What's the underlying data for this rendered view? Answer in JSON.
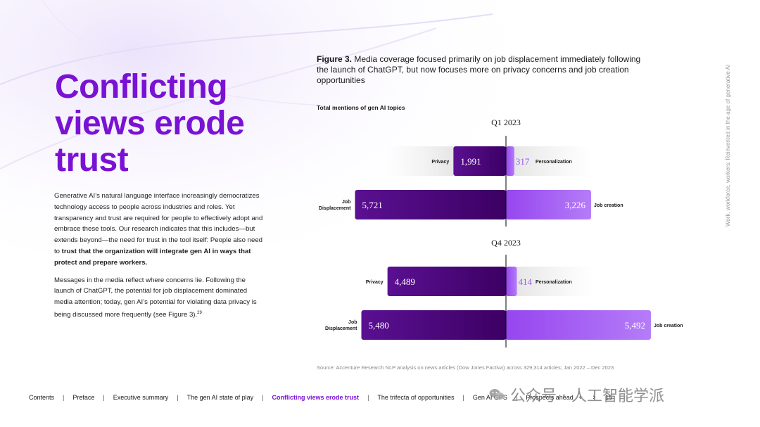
{
  "page_title": [
    "Conflicting",
    "views erode",
    "trust"
  ],
  "body": {
    "p1_plain": "Generative AI’s natural language interface increasingly democratizes technology access to people across industries and roles. Yet transparency and trust are required for people to effectively adopt and embrace these tools. Our research indicates that this includes—but extends beyond—the need for trust in the tool itself: People also need to ",
    "p1_bold": "trust that the organization will integrate gen AI in ways that protect and prepare workers.",
    "p2": "Messages in the media reflect where concerns lie. Following the launch of ChatGPT, the potential for job displacement dominated media attention; today, gen AI’s potential for violating data privacy is being discussed more frequently (see Figure 3).",
    "p2_footnote": "29"
  },
  "figure": {
    "label": "Figure 3.",
    "caption": " Media coverage focused primarily on job displacement immediately following the launch of ChatGPT, but now focuses more on privacy concerns and job creation opportunities",
    "subtitle": "Total mentions of gen AI topics",
    "source": "Source: Accenture Research NLP analysis on news articles (Dow Jones Factiva) across 329,314 articles; Jan 2022 – Dec 2023"
  },
  "chart_data": {
    "type": "bar",
    "orientation": "horizontal-diverging",
    "title": "Total mentions of gen AI topics",
    "panels": [
      {
        "name": "Q1 2023",
        "rows": [
          {
            "left_label": "Privacy",
            "left_value": 1991,
            "left_text": "1,991",
            "right_label": "Personalization",
            "right_value": 317,
            "right_text": "317"
          },
          {
            "left_label": "Job Displacement",
            "left_value": 5721,
            "left_text": "5,721",
            "right_label": "Job creation",
            "right_value": 3226,
            "right_text": "3,226"
          }
        ]
      },
      {
        "name": "Q4 2023",
        "rows": [
          {
            "left_label": "Privacy",
            "left_value": 4489,
            "left_text": "4,489",
            "right_label": "Personalization",
            "right_value": 414,
            "right_text": "414"
          },
          {
            "left_label": "Job Displacement",
            "left_value": 5480,
            "left_text": "5,480",
            "right_label": "Job creation",
            "right_value": 5492,
            "right_text": "5,492"
          }
        ]
      }
    ],
    "colors": {
      "left_bar": "#460073",
      "right_bar": "#a055f5",
      "center_line": "#000000"
    }
  },
  "side_text": "Work, workforce, workers: Reinvented in the age of generative AI",
  "footer": {
    "nav": [
      "Contents",
      "Preface",
      "Executive summary",
      "The gen AI state of play",
      "Conflicting views erode trust",
      "The trifecta of opportunities",
      "Gen AI GPS",
      "Prospects ahead"
    ],
    "active_index": 4,
    "prev": "‹",
    "next": "›",
    "page": "15"
  },
  "watermark": {
    "text": "公众号 · 人工智能学派",
    "icon": "wechat-icon"
  }
}
